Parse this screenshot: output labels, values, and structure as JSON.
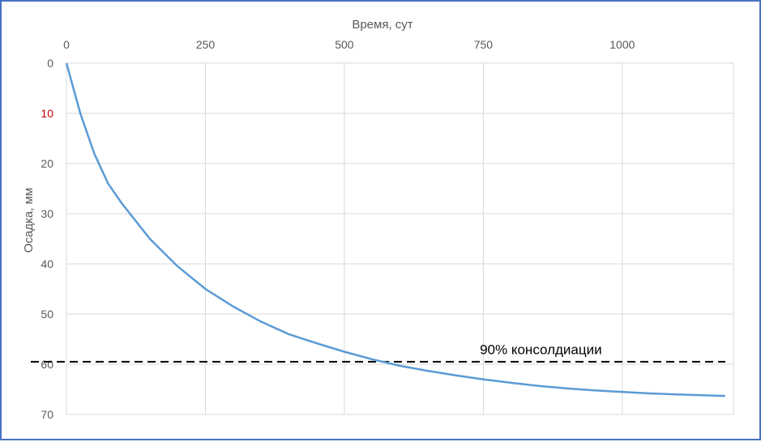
{
  "chart_data": {
    "type": "line",
    "xlabel": "Время, сут",
    "ylabel": "Осадка, мм",
    "xlim": [
      0,
      1200
    ],
    "ylim": [
      0,
      70
    ],
    "y_inverted": true,
    "x_axis_position": "top",
    "grid": true,
    "x_ticks": [
      "0",
      "250",
      "500",
      "750",
      "1000"
    ],
    "x_tick_values": [
      0,
      250,
      500,
      750,
      1000
    ],
    "y_ticks": [
      "0",
      "10",
      "20",
      "30",
      "40",
      "50",
      "60",
      "70"
    ],
    "y_tick_values": [
      0,
      10,
      20,
      30,
      40,
      50,
      60,
      70
    ],
    "y_tick_colors": [
      "#595959",
      "#c00000",
      "#595959",
      "#595959",
      "#595959",
      "#595959",
      "#595959",
      "#595959"
    ],
    "series": [
      {
        "color": "#5b9bd5",
        "x": [
          0,
          25,
          50,
          75,
          100,
          150,
          200,
          250,
          300,
          350,
          400,
          450,
          500,
          550,
          600,
          650,
          700,
          750,
          800,
          850,
          900,
          950,
          1000,
          1050,
          1100,
          1150,
          1185
        ],
        "y": [
          0,
          10,
          18,
          24,
          28,
          35,
          40.5,
          45,
          48.5,
          51.5,
          54,
          55.8,
          57.5,
          59,
          60.3,
          61.3,
          62.2,
          63,
          63.7,
          64.3,
          64.8,
          65.2,
          65.5,
          65.8,
          66,
          66.2,
          66.3
        ]
      }
    ],
    "reference_line": {
      "y": 59.5,
      "style": "dashed",
      "color": "#000000"
    },
    "annotations": [
      {
        "text": "90% консолдиации",
        "x": 875,
        "y": 57
      }
    ]
  }
}
